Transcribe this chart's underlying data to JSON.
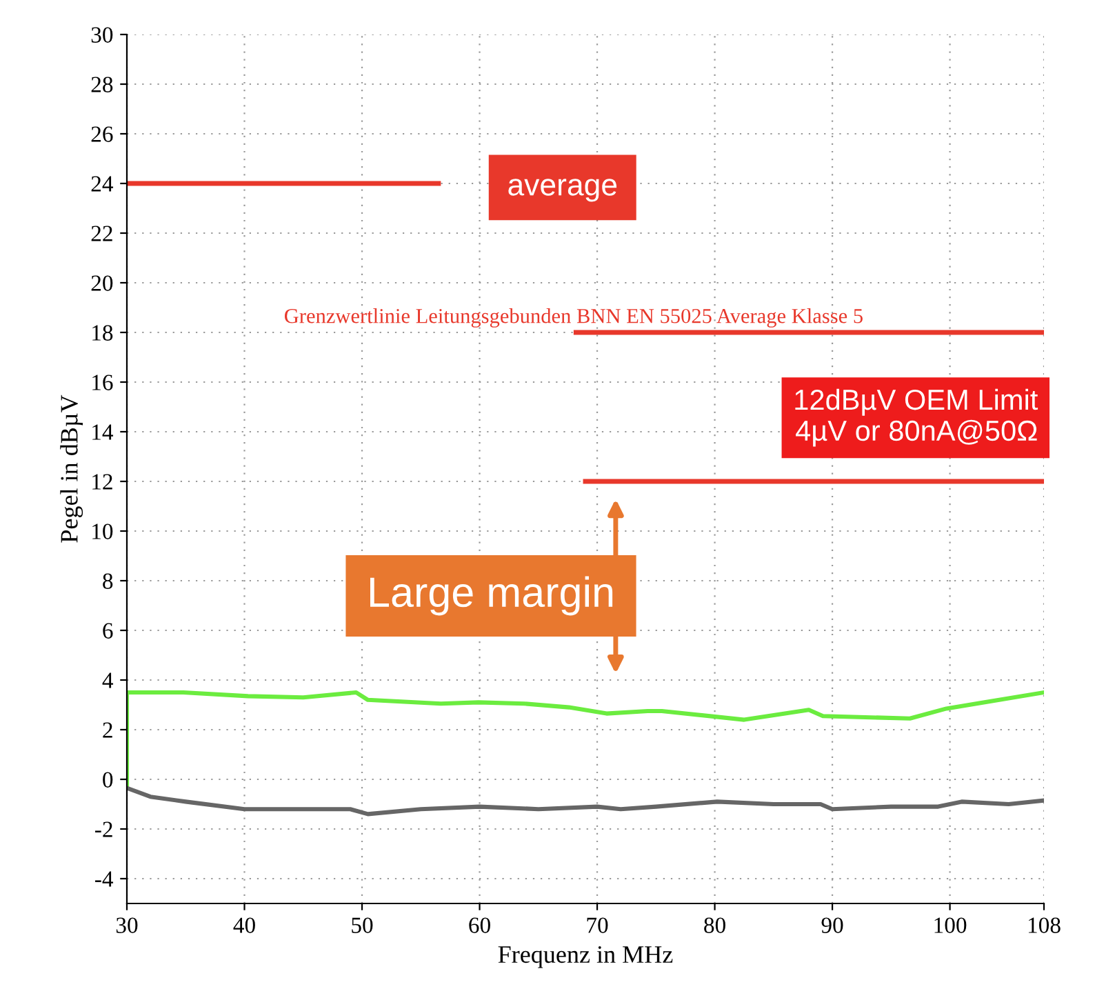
{
  "chart_data": {
    "type": "line",
    "xlabel": "Frequenz in MHz",
    "ylabel": "Pegel in dBµV",
    "xlim": [
      30,
      108
    ],
    "xticks": [
      30,
      40,
      50,
      60,
      70,
      80,
      90,
      100,
      108
    ],
    "ylim": [
      -5,
      30
    ],
    "yticks": [
      -4,
      -2,
      0,
      2,
      4,
      6,
      8,
      10,
      12,
      14,
      16,
      18,
      20,
      22,
      24,
      26,
      28,
      30
    ],
    "grid": true,
    "series": [
      {
        "color": "#6bec3f",
        "x": [
          30,
          30,
          34.8,
          40.3,
          45,
          49.5,
          50.5,
          56.7,
          59.9,
          63.8,
          67.6,
          70.8,
          74.3,
          75.5,
          82.5,
          88,
          89.2,
          96.6,
          99.7,
          108
        ],
        "values": [
          -0.3,
          3.5,
          3.5,
          3.35,
          3.3,
          3.5,
          3.2,
          3.05,
          3.1,
          3.05,
          2.9,
          2.65,
          2.75,
          2.75,
          2.4,
          2.8,
          2.55,
          2.45,
          2.85,
          3.5
        ]
      },
      {
        "color": "#666666",
        "x": [
          30,
          32,
          35,
          40,
          45,
          49,
          50.5,
          55,
          60,
          65,
          70,
          72,
          75,
          80.2,
          85,
          89,
          90,
          95,
          99,
          101,
          105,
          108
        ],
        "values": [
          -0.35,
          -0.7,
          -0.9,
          -1.2,
          -1.2,
          -1.2,
          -1.4,
          -1.2,
          -1.1,
          -1.2,
          -1.1,
          -1.2,
          -1.1,
          -0.9,
          -1.0,
          -1.0,
          -1.2,
          -1.1,
          -1.1,
          -0.9,
          -1.0,
          -0.85
        ]
      },
      {
        "color": "#e8382b",
        "x": [
          30,
          56.5
        ],
        "values": [
          24,
          24
        ]
      },
      {
        "color": "#e8382b",
        "x": [
          68.2,
          108
        ],
        "values": [
          18,
          18
        ]
      },
      {
        "color": "#e8382b",
        "x": [
          69,
          108
        ],
        "values": [
          12,
          12
        ]
      }
    ],
    "annotations": [
      "average",
      {
        "text": "Grenzwertlinie Leitungsgebunden BNN EN 55025 Average Klasse 5",
        "x": 68,
        "y": 18
      },
      "12dBµV OEM Limit\n4µV or 80nA@50Ω",
      "Large margin"
    ]
  }
}
